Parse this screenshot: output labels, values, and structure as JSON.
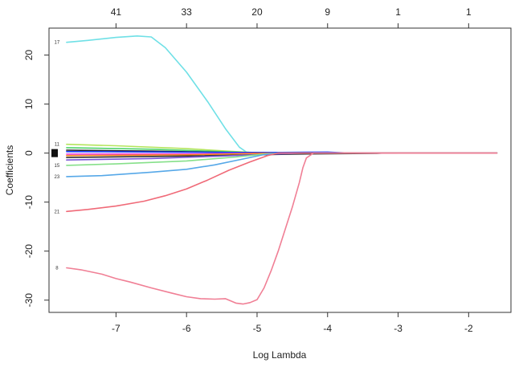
{
  "chart_data": {
    "type": "line",
    "title": "",
    "xlabel": "Log Lambda",
    "ylabel": "Coefficients",
    "xlim": [
      -7.95,
      -1.4
    ],
    "ylim": [
      -32.5,
      25.5
    ],
    "x_ticks": [
      "-7",
      "-6",
      "-5",
      "-4",
      "-3",
      "-2"
    ],
    "x_tick_values": [
      -7,
      -6,
      -5,
      -4,
      -3,
      -2
    ],
    "y_ticks": [
      "-30",
      "-20",
      "-10",
      "0",
      "10",
      "20"
    ],
    "y_tick_values": [
      -30,
      -20,
      -10,
      0,
      10,
      20
    ],
    "top_ticks": [
      "41",
      "33",
      "20",
      "9",
      "1",
      "1"
    ],
    "top_tick_values": [
      -7,
      -6,
      -5,
      -4,
      -3,
      -2
    ],
    "grid": false,
    "legend": "none",
    "series": [
      {
        "label": "17",
        "color": "#6fe0e6",
        "points": [
          [
            -7.7,
            22.6
          ],
          [
            -7.4,
            23.0
          ],
          [
            -7.0,
            23.6
          ],
          [
            -6.7,
            23.9
          ],
          [
            -6.5,
            23.7
          ],
          [
            -6.3,
            21.5
          ],
          [
            -6.0,
            16.5
          ],
          [
            -5.7,
            10.5
          ],
          [
            -5.45,
            5.0
          ],
          [
            -5.25,
            1.2
          ],
          [
            -5.15,
            0.2
          ],
          [
            -5.0,
            0.0
          ],
          [
            -1.6,
            0.0
          ]
        ]
      },
      {
        "label": "11",
        "color": "#b3e55c",
        "points": [
          [
            -7.7,
            1.8
          ],
          [
            -7.0,
            1.5
          ],
          [
            -6.0,
            0.9
          ],
          [
            -5.3,
            0.3
          ],
          [
            -4.9,
            0.0
          ],
          [
            -1.6,
            0.0
          ]
        ]
      },
      {
        "label": "",
        "color": "#4fd36b",
        "points": [
          [
            -7.7,
            1.1
          ],
          [
            -6.5,
            0.8
          ],
          [
            -5.5,
            0.3
          ],
          [
            -5.0,
            0.05
          ],
          [
            -1.6,
            0.0
          ]
        ]
      },
      {
        "label": "",
        "color": "#222222",
        "points": [
          [
            -7.7,
            0.6
          ],
          [
            -6.5,
            0.4
          ],
          [
            -5.5,
            0.15
          ],
          [
            -4.0,
            0.05
          ],
          [
            -1.6,
            0.0
          ]
        ]
      },
      {
        "label": "",
        "color": "#1a3cff",
        "points": [
          [
            -7.7,
            0.3
          ],
          [
            -6.0,
            0.2
          ],
          [
            -5.0,
            0.1
          ],
          [
            -4.0,
            0.2
          ],
          [
            -3.7,
            0.0
          ],
          [
            -1.6,
            0.0
          ]
        ]
      },
      {
        "label": "",
        "color": "#e83fe0",
        "points": [
          [
            -7.7,
            -0.2
          ],
          [
            -6.0,
            -0.15
          ],
          [
            -5.0,
            -0.05
          ],
          [
            -1.6,
            0.0
          ]
        ]
      },
      {
        "label": "",
        "color": "#ff8a1c",
        "points": [
          [
            -7.7,
            -0.5
          ],
          [
            -6.0,
            -0.35
          ],
          [
            -5.0,
            -0.1
          ],
          [
            -4.5,
            0.0
          ],
          [
            -1.6,
            0.0
          ]
        ]
      },
      {
        "label": "",
        "color": "#333333",
        "points": [
          [
            -7.7,
            -0.9
          ],
          [
            -6.0,
            -0.6
          ],
          [
            -4.5,
            -0.2
          ],
          [
            -3.3,
            -0.05
          ],
          [
            -3.2,
            0.0
          ],
          [
            -1.6,
            0.0
          ]
        ]
      },
      {
        "label": "",
        "color": "#7a57d6",
        "points": [
          [
            -7.7,
            -1.4
          ],
          [
            -6.5,
            -1.1
          ],
          [
            -5.5,
            -0.6
          ],
          [
            -4.8,
            -0.2
          ],
          [
            -4.3,
            0.0
          ],
          [
            -1.6,
            0.0
          ]
        ]
      },
      {
        "label": "15",
        "color": "#86e08a",
        "points": [
          [
            -7.7,
            -2.5
          ],
          [
            -7.0,
            -2.2
          ],
          [
            -6.0,
            -1.6
          ],
          [
            -5.3,
            -0.8
          ],
          [
            -4.9,
            -0.2
          ],
          [
            -4.7,
            0.0
          ],
          [
            -1.6,
            0.0
          ]
        ]
      },
      {
        "label": "23",
        "color": "#56a8e8",
        "points": [
          [
            -7.7,
            -4.8
          ],
          [
            -7.2,
            -4.6
          ],
          [
            -6.5,
            -3.9
          ],
          [
            -6.0,
            -3.3
          ],
          [
            -5.6,
            -2.4
          ],
          [
            -5.2,
            -1.2
          ],
          [
            -4.9,
            -0.3
          ],
          [
            -4.7,
            0.0
          ],
          [
            -1.6,
            0.0
          ]
        ]
      },
      {
        "label": "21",
        "color": "#f06a78",
        "points": [
          [
            -7.7,
            -11.9
          ],
          [
            -7.4,
            -11.5
          ],
          [
            -7.0,
            -10.8
          ],
          [
            -6.6,
            -9.8
          ],
          [
            -6.3,
            -8.7
          ],
          [
            -6.0,
            -7.3
          ],
          [
            -5.7,
            -5.5
          ],
          [
            -5.4,
            -3.5
          ],
          [
            -5.1,
            -1.8
          ],
          [
            -4.85,
            -0.5
          ],
          [
            -4.7,
            0.0
          ],
          [
            -1.6,
            0.0
          ]
        ]
      },
      {
        "label": "8",
        "color": "#f07f95",
        "points": [
          [
            -7.7,
            -23.4
          ],
          [
            -7.5,
            -23.8
          ],
          [
            -7.2,
            -24.7
          ],
          [
            -7.0,
            -25.6
          ],
          [
            -6.8,
            -26.3
          ],
          [
            -6.5,
            -27.5
          ],
          [
            -6.2,
            -28.6
          ],
          [
            -6.0,
            -29.3
          ],
          [
            -5.8,
            -29.7
          ],
          [
            -5.6,
            -29.8
          ],
          [
            -5.45,
            -29.7
          ],
          [
            -5.3,
            -30.6
          ],
          [
            -5.2,
            -30.8
          ],
          [
            -5.1,
            -30.5
          ],
          [
            -5.0,
            -29.9
          ],
          [
            -4.9,
            -27.5
          ],
          [
            -4.8,
            -24.0
          ],
          [
            -4.7,
            -20.0
          ],
          [
            -4.6,
            -15.5
          ],
          [
            -4.5,
            -11.0
          ],
          [
            -4.4,
            -6.0
          ],
          [
            -4.35,
            -3.0
          ],
          [
            -4.3,
            -1.0
          ],
          [
            -4.2,
            0.0
          ],
          [
            -1.6,
            0.0
          ]
        ]
      }
    ]
  }
}
